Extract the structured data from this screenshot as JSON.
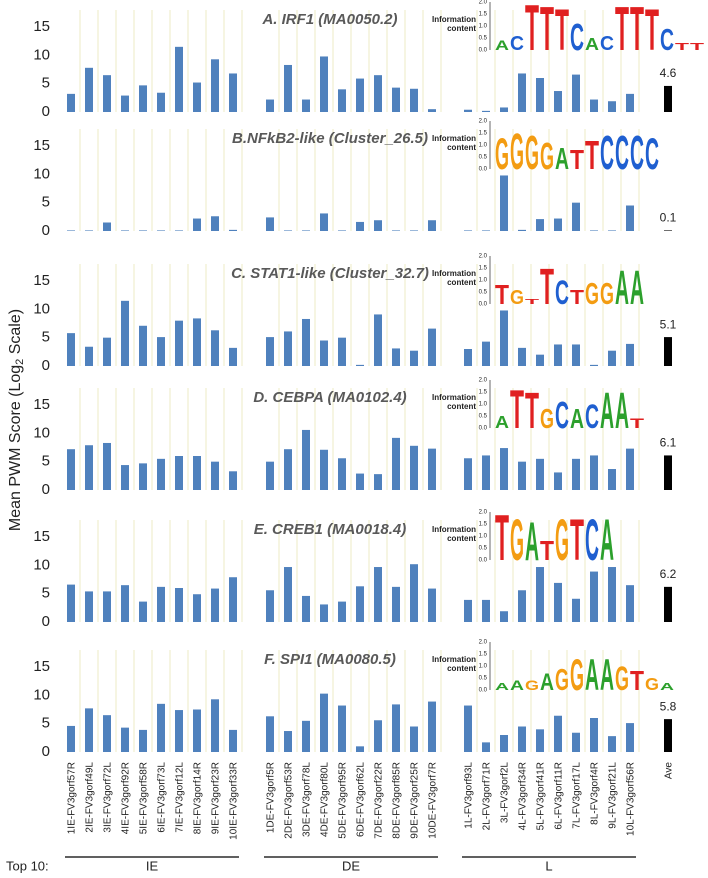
{
  "ylabel_parts": [
    "Mean PWM Score (Log",
    "2",
    " Scale)"
  ],
  "x_axis": {
    "categories": [
      "1IE-FV3gorf57R",
      "2IE-FV3gorf49L",
      "3IE-FV3gorf72L",
      "4IE-FV3gorf92R",
      "5IE-FV3gorf58R",
      "6IE-FV3gorf73L",
      "7IE-FV3gorf12L",
      "8IE-FV3gorf14R",
      "9IE-FV3gorf23R",
      "10IE-FV3gorf33R",
      "1DE-FV3gorf5R",
      "2DE-FV3gorf53R",
      "3DE-FV3gorf78L",
      "4DE-FV3gorf80L",
      "5DE-FV3gorf95R",
      "6DE-FV3gorf62L",
      "7DE-FV3gorf22R",
      "8DE-FV3gorf85R",
      "9DE-FV3gorf25R",
      "10DE-FV3gorf7R",
      "1L-FV3gorf93L",
      "2L-FV3gorf71R",
      "3L-FV3gorf2L",
      "4L-FV3gorf34R",
      "5L-FV3gorf41R",
      "6L-FV3gorf11R",
      "7L-FV3gorf17L",
      "8L-FV3gorf4R",
      "9L-FV3gorf21L",
      "10L-FV3gorf56R"
    ],
    "ave_label": "Ave",
    "group_prefix": "Top 10:",
    "groups": [
      "IE",
      "DE",
      "L"
    ]
  },
  "logo_axis": {
    "label_lines": [
      "Information",
      "content"
    ],
    "ylim": [
      0,
      2
    ],
    "yticks": [
      {
        "value": 0,
        "label": "0.0"
      },
      {
        "value": 0.5,
        "label": "0.5"
      },
      {
        "value": 1,
        "label": "1.0"
      },
      {
        "value": 1.5,
        "label": "1.5"
      },
      {
        "value": 2,
        "label": "2.0"
      }
    ]
  },
  "chart_data": [
    {
      "type": "bar",
      "title": "A. IRF1 (MA0050.2)",
      "color": "#4f81bd",
      "ave_color": "#000000",
      "ylim": [
        0,
        18
      ],
      "yticks": [
        0,
        5,
        10,
        15
      ],
      "values": [
        3.2,
        7.8,
        6.5,
        2.9,
        4.7,
        3.4,
        11.5,
        5.2,
        9.3,
        6.8,
        2.2,
        8.3,
        2.2,
        9.8,
        4.0,
        5.9,
        6.5,
        4.3,
        4.1,
        0.5,
        0.4,
        0.2,
        0.8,
        6.8,
        6.0,
        3.7,
        6.6,
        2.2,
        1.9,
        3.2
      ],
      "ave": 4.6,
      "logo": {
        "letters": [
          "A",
          "C",
          "T",
          "T",
          "T",
          "C",
          "A",
          "C",
          "T",
          "T",
          "T",
          "C",
          "T",
          "T"
        ],
        "heights": [
          0.4,
          0.6,
          1.9,
          1.8,
          1.7,
          1.1,
          0.5,
          0.6,
          1.8,
          1.8,
          1.7,
          0.9,
          0.3,
          0.3
        ]
      }
    },
    {
      "type": "bar",
      "title": "B.NFkB2-like (Cluster_26.5)",
      "color": "#4f81bd",
      "ave_color": "#000000",
      "ylim": [
        0,
        18
      ],
      "yticks": [
        0,
        5,
        10,
        15
      ],
      "values": [
        0.1,
        0.1,
        1.5,
        0.1,
        0.1,
        0.1,
        0.1,
        2.2,
        2.6,
        0.2,
        2.4,
        0.1,
        0.1,
        3.1,
        0.1,
        1.6,
        1.9,
        0.1,
        0.1,
        1.9,
        0.1,
        0.1,
        9.8,
        0.2,
        2.1,
        2.2,
        5.0,
        0.1,
        0.1,
        4.5
      ],
      "ave": 0.1,
      "logo": {
        "letters": [
          "G",
          "G",
          "G",
          "G",
          "A",
          "T",
          "T",
          "C",
          "C",
          "C",
          "C"
        ],
        "heights": [
          1.3,
          1.5,
          1.4,
          1.1,
          0.9,
          0.8,
          1.2,
          1.4,
          1.4,
          1.4,
          1.3
        ]
      }
    },
    {
      "type": "bar",
      "title": "C. STAT1-like (Cluster_32.7)",
      "color": "#4f81bd",
      "ave_color": "#000000",
      "ylim": [
        0,
        18
      ],
      "yticks": [
        0,
        5,
        10,
        15
      ],
      "values": [
        5.8,
        3.4,
        5.0,
        11.5,
        7.1,
        5.1,
        8.0,
        8.4,
        6.3,
        3.2,
        5.1,
        6.1,
        8.3,
        4.5,
        5.0,
        0.2,
        9.1,
        3.1,
        2.7,
        6.6,
        3.0,
        4.3,
        9.8,
        3.2,
        2.0,
        3.8,
        3.8,
        0.2,
        2.7,
        3.9
      ],
      "ave": 5.1,
      "logo": {
        "letters": [
          "T",
          "G",
          "T",
          "T",
          "C",
          "T",
          "G",
          "G",
          "A",
          "A"
        ],
        "heights": [
          0.8,
          0.6,
          0.2,
          1.5,
          1.0,
          0.6,
          0.9,
          0.9,
          1.4,
          1.4
        ]
      }
    },
    {
      "type": "bar",
      "title": "D. CEBPA (MA0102.4)",
      "color": "#4f81bd",
      "ave_color": "#000000",
      "ylim": [
        0,
        18
      ],
      "yticks": [
        0,
        5,
        10,
        15
      ],
      "values": [
        7.2,
        7.9,
        8.3,
        4.4,
        4.7,
        5.5,
        6.0,
        6.0,
        5.0,
        3.3,
        5.0,
        7.2,
        10.6,
        7.1,
        5.6,
        2.9,
        2.8,
        9.2,
        7.8,
        7.3,
        5.6,
        6.1,
        7.4,
        5.0,
        5.5,
        3.1,
        5.5,
        6.1,
        3.7,
        7.3
      ],
      "ave": 6.1,
      "logo": {
        "letters": [
          "A",
          "T",
          "T",
          "G",
          "C",
          "A",
          "C",
          "A",
          "A",
          "T"
        ],
        "heights": [
          0.5,
          1.6,
          1.5,
          0.8,
          1.1,
          0.8,
          1.0,
          1.5,
          1.5,
          0.4
        ]
      }
    },
    {
      "type": "bar",
      "title": "E. CREB1 (MA0018.4)",
      "color": "#4f81bd",
      "ave_color": "#000000",
      "ylim": [
        0,
        18
      ],
      "yticks": [
        0,
        5,
        10,
        15
      ],
      "values": [
        6.6,
        5.4,
        5.4,
        6.5,
        3.6,
        6.2,
        6.0,
        4.9,
        5.9,
        7.9,
        5.6,
        9.7,
        4.6,
        3.1,
        3.6,
        6.3,
        9.7,
        6.2,
        10.2,
        5.9,
        3.9,
        3.9,
        1.9,
        5.6,
        9.7,
        6.9,
        4.1,
        8.9,
        9.7,
        6.5
      ],
      "ave": 6.2,
      "logo": {
        "letters": [
          "T",
          "G",
          "A",
          "T",
          "G",
          "T",
          "C",
          "A"
        ],
        "heights": [
          1.9,
          1.7,
          1.6,
          0.8,
          1.7,
          1.7,
          1.7,
          1.7
        ]
      }
    },
    {
      "type": "bar",
      "title": "F. SPI1 (MA0080.5)",
      "color": "#4f81bd",
      "ave_color": "#000000",
      "ylim": [
        0,
        18
      ],
      "yticks": [
        0,
        5,
        10,
        15
      ],
      "values": [
        4.6,
        7.7,
        6.5,
        4.3,
        3.9,
        8.5,
        7.4,
        7.5,
        9.3,
        3.9,
        6.3,
        3.7,
        5.5,
        10.3,
        8.2,
        1.0,
        5.6,
        8.4,
        4.5,
        8.9,
        8.2,
        1.7,
        3.0,
        4.5,
        4.0,
        6.4,
        3.4,
        6.0,
        2.8,
        5.1
      ],
      "ave": 5.8,
      "logo": {
        "letters": [
          "A",
          "A",
          "G",
          "A",
          "G",
          "G",
          "A",
          "A",
          "G",
          "T",
          "G",
          "A"
        ],
        "heights": [
          0.3,
          0.4,
          0.4,
          0.7,
          0.9,
          1.3,
          1.3,
          1.3,
          1.0,
          0.8,
          0.5,
          0.3
        ]
      }
    }
  ]
}
